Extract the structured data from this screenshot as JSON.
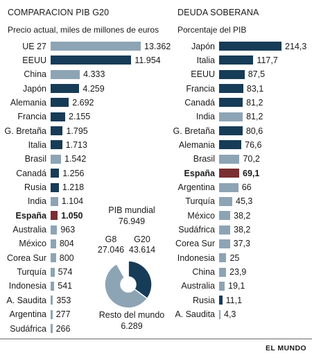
{
  "colors": {
    "dark": "#173c57",
    "light": "#8da4b5",
    "highlight": "#7a2e32"
  },
  "chart_data": [
    {
      "type": "bar",
      "title": "COMPARACION PIB G20",
      "subtitle": "Precio actual, miles de millones de euros",
      "xlim": [
        0,
        13362
      ],
      "bars": [
        {
          "label": "UE 27",
          "value": 13362,
          "display": "13.362",
          "shade": "light"
        },
        {
          "label": "EEUU",
          "value": 11954,
          "display": "11.954",
          "shade": "dark"
        },
        {
          "label": "China",
          "value": 4333,
          "display": "4.333",
          "shade": "light"
        },
        {
          "label": "Japón",
          "value": 4259,
          "display": "4.259",
          "shade": "dark"
        },
        {
          "label": "Alemania",
          "value": 2692,
          "display": "2.692",
          "shade": "dark"
        },
        {
          "label": "Francia",
          "value": 2155,
          "display": "2.155",
          "shade": "dark"
        },
        {
          "label": "G. Bretaña",
          "value": 1795,
          "display": "1.795",
          "shade": "dark"
        },
        {
          "label": "Italia",
          "value": 1713,
          "display": "1.713",
          "shade": "dark"
        },
        {
          "label": "Brasil",
          "value": 1542,
          "display": "1.542",
          "shade": "light"
        },
        {
          "label": "Canadá",
          "value": 1256,
          "display": "1.256",
          "shade": "dark"
        },
        {
          "label": "Rusia",
          "value": 1218,
          "display": "1.218",
          "shade": "dark"
        },
        {
          "label": "India",
          "value": 1104,
          "display": "1.104",
          "shade": "light"
        },
        {
          "label": "España",
          "value": 1050,
          "display": "1.050",
          "shade": "highlight",
          "bold": true
        },
        {
          "label": "Australia",
          "value": 963,
          "display": "963",
          "shade": "light"
        },
        {
          "label": "México",
          "value": 804,
          "display": "804",
          "shade": "light"
        },
        {
          "label": "Corea Sur",
          "value": 800,
          "display": "800",
          "shade": "light"
        },
        {
          "label": "Turquía",
          "value": 574,
          "display": "574",
          "shade": "light"
        },
        {
          "label": "Indonesia",
          "value": 541,
          "display": "541",
          "shade": "light"
        },
        {
          "label": "A. Saudita",
          "value": 353,
          "display": "353",
          "shade": "light"
        },
        {
          "label": "Argentina",
          "value": 277,
          "display": "277",
          "shade": "light"
        },
        {
          "label": "Sudáfrica",
          "value": 266,
          "display": "266",
          "shade": "light"
        }
      ]
    },
    {
      "type": "bar",
      "title": "DEUDA SOBERANA",
      "subtitle": "Porcentaje del PIB",
      "xlim": [
        0,
        214.3
      ],
      "bars": [
        {
          "label": "Japón",
          "value": 214.3,
          "display": "214,3",
          "shade": "dark"
        },
        {
          "label": "Italia",
          "value": 117.7,
          "display": "117,7",
          "shade": "dark"
        },
        {
          "label": "EEUU",
          "value": 87.5,
          "display": "87,5",
          "shade": "dark"
        },
        {
          "label": "Francia",
          "value": 83.1,
          "display": "83,1",
          "shade": "dark"
        },
        {
          "label": "Canadá",
          "value": 81.2,
          "display": "81,2",
          "shade": "dark"
        },
        {
          "label": "India",
          "value": 81.2,
          "display": "81,2",
          "shade": "light"
        },
        {
          "label": "G. Bretaña",
          "value": 80.6,
          "display": "80,6",
          "shade": "dark"
        },
        {
          "label": "Alemania",
          "value": 76.6,
          "display": "76,6",
          "shade": "dark"
        },
        {
          "label": "Brasil",
          "value": 70.2,
          "display": "70,2",
          "shade": "light"
        },
        {
          "label": "España",
          "value": 69.1,
          "display": "69,1",
          "shade": "highlight",
          "bold": true
        },
        {
          "label": "Argentina",
          "value": 66,
          "display": "66",
          "shade": "light"
        },
        {
          "label": "Turquía",
          "value": 45.3,
          "display": "45,3",
          "shade": "light"
        },
        {
          "label": "México",
          "value": 38.2,
          "display": "38,2",
          "shade": "light"
        },
        {
          "label": "Sudáfrica",
          "value": 38.2,
          "display": "38,2",
          "shade": "light"
        },
        {
          "label": "Corea Sur",
          "value": 37.3,
          "display": "37,3",
          "shade": "light"
        },
        {
          "label": "Indonesia",
          "value": 25,
          "display": "25",
          "shade": "light"
        },
        {
          "label": "China",
          "value": 23.9,
          "display": "23,9",
          "shade": "light"
        },
        {
          "label": "Australia",
          "value": 19.1,
          "display": "19,1",
          "shade": "light"
        },
        {
          "label": "Rusia",
          "value": 11.1,
          "display": "11,1",
          "shade": "dark"
        },
        {
          "label": "A. Saudita",
          "value": 4.3,
          "display": "4,3",
          "shade": "light"
        }
      ]
    },
    {
      "type": "pie",
      "title": "PIB mundial",
      "total": "76.949",
      "slices": [
        {
          "label": "G8",
          "value": 27046,
          "display": "27.046",
          "shade": "dark"
        },
        {
          "label": "G20",
          "value": 43614,
          "display": "43.614",
          "shade": "light"
        },
        {
          "label": "Resto del mundo",
          "value": 6289,
          "display": "6.289",
          "shade": "white"
        }
      ]
    }
  ],
  "footer": {
    "brand": "EL MUNDO"
  }
}
